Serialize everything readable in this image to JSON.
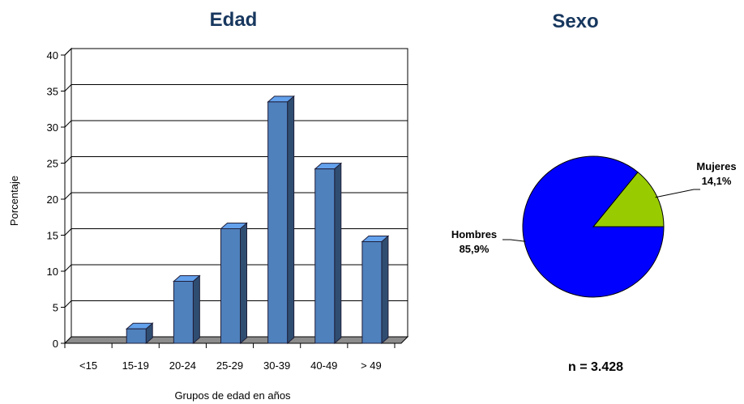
{
  "chart_data": [
    {
      "type": "bar",
      "title": "Edad",
      "xlabel": "Grupos de edad en años",
      "ylabel": "Porcentaje",
      "categories": [
        "<15",
        "15-19",
        "20-24",
        "25-29",
        "30-39",
        "40-49",
        "> 49"
      ],
      "values": [
        0,
        2,
        8.6,
        15.9,
        33.5,
        24.2,
        14.1
      ],
      "ylim": [
        0,
        40
      ],
      "yticks": [
        0,
        5,
        10,
        15,
        20,
        25,
        30,
        35,
        40
      ],
      "grid": true,
      "style": "3d",
      "bar_color": "#4f81bd"
    },
    {
      "type": "pie",
      "title": "Sexo",
      "slices": [
        {
          "name": "Hombres",
          "value": 85.9,
          "label": "85,9%",
          "color": "#0000ff"
        },
        {
          "name": "Mujeres",
          "value": 14.1,
          "label": "14,1%",
          "color": "#99cc00"
        }
      ],
      "note": "n = 3.428"
    }
  ]
}
